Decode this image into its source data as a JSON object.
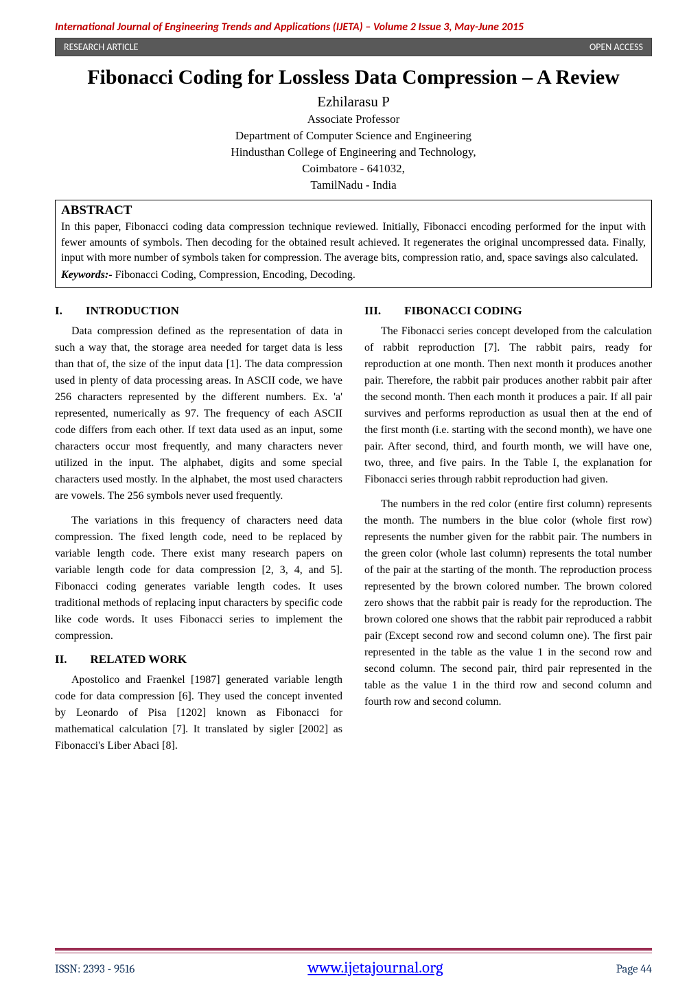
{
  "journal_header": "International Journal of Engineering Trends and Applications (IJETA) – Volume 2 Issue 3, May-June 2015",
  "banner": {
    "left": "RESEARCH ARTICLE",
    "right": "OPEN ACCESS"
  },
  "title": "Fibonacci Coding for Lossless Data Compression – A Review",
  "author": "Ezhilarasu P",
  "affiliation_lines": [
    "Associate Professor",
    "Department of Computer Science and Engineering",
    "Hindusthan College of Engineering and Technology,",
    "Coimbatore - 641032,",
    "TamilNadu - India"
  ],
  "abstract": {
    "heading": "ABSTRACT",
    "text": "In this paper, Fibonacci coding data compression technique reviewed. Initially, Fibonacci encoding performed for the input with fewer amounts of symbols. Then decoding for the obtained result achieved. It regenerates the original uncompressed data.  Finally, input with more number of symbols taken for compression. The average bits, compression ratio, and, space savings also calculated.",
    "keywords_label": "Keywords:-",
    "keywords_text": " Fibonacci Coding, Compression, Encoding, Decoding."
  },
  "sections": {
    "s1": {
      "num": "I.",
      "title": "INTRODUCTION"
    },
    "s2": {
      "num": "II.",
      "title": "RELATED WORK"
    },
    "s3": {
      "num": "III.",
      "title": "FIBONACCI CODING"
    }
  },
  "paras": {
    "p1": "Data compression defined as the representation of data in such a way that, the storage area needed for target data is less than that of, the size of the input data [1]. The data compression used in plenty of data processing areas. In ASCII code, we have 256 characters represented by the different numbers. Ex. 'a' represented, numerically as 97. The frequency of each ASCII code differs from each other. If text data used as an input, some characters occur most frequently, and many characters never utilized in the input. The alphabet, digits and some special characters used mostly. In the alphabet, the most used characters are vowels. The 256 symbols never used frequently.",
    "p2": "The variations in this frequency of characters need data compression. The fixed length code, need to be replaced by variable length code. There exist many research papers on variable length code for data compression [2, 3, 4, and 5]. Fibonacci coding generates variable length codes. It uses traditional methods of replacing input characters by specific code like code words. It uses Fibonacci series to implement the compression.",
    "p3": "Apostolico and Fraenkel [1987] generated variable length code for data compression [6].  They used the concept invented by Leonardo of Pisa [1202] known as Fibonacci for mathematical calculation [7]. It translated by sigler [2002] as Fibonacci's Liber Abaci [8].",
    "p4": "The Fibonacci series concept developed from the calculation of rabbit reproduction [7]. The rabbit pairs, ready for reproduction at one month. Then next month it produces another pair. Therefore, the rabbit pair produces another rabbit pair after the second month. Then each month it produces a pair. If all pair survives and performs reproduction as usual then at the end of the first month (i.e. starting with the second month), we have one pair. After second, third, and fourth month, we will have one, two, three, and five pairs. In the Table I, the explanation for Fibonacci series through rabbit reproduction had given.",
    "p5": "The numbers in the red color (entire first column) represents the month. The numbers in the blue color (whole first row) represents the number given for the rabbit pair. The numbers in the green color (whole last column) represents the total number of the pair at the starting of the month. The reproduction process represented by the brown colored number. The brown colored zero shows that the rabbit pair is ready for the reproduction.  The brown colored one shows that the rabbit pair reproduced a rabbit pair (Except second row and second column one). The first pair represented in the table as the value 1 in the second row and second column. The second pair, third pair represented in the table as the value 1  in the third row and second column and fourth row and second column."
  },
  "footer": {
    "issn": "ISSN: 2393 - 9516",
    "url": "www.ijetajournal.org",
    "page": "Page 44"
  },
  "colors": {
    "journal_header": "#c00000",
    "banner_bg": "#595959",
    "banner_fg": "#ffffff",
    "footer_rule": "#9b2d52",
    "footer_text": "#17365d",
    "url": "#0000ff"
  }
}
